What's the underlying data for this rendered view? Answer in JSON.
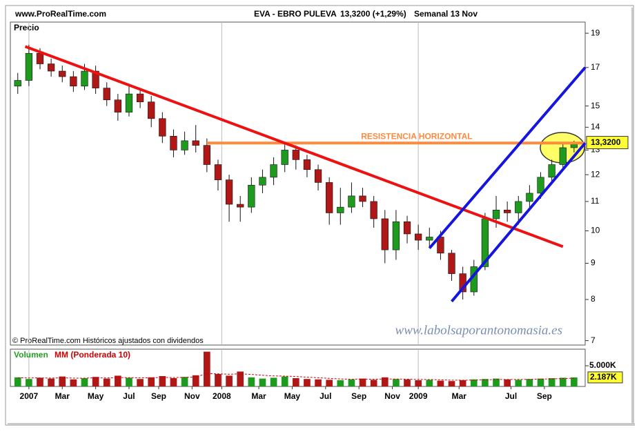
{
  "chart_data": {
    "type": "candlestick",
    "source": "www.ProRealTime.com",
    "title": "EVA - EBRO PULEVA",
    "quote": "13,3200 (+1,29%)",
    "period": "Semanal 13 Nov",
    "y_label": "Precio",
    "footnote": "© ProRealTime.com Históricos ajustados con dividendos",
    "watermark": "www.labolsaporantonomasia.es",
    "log_scale": true,
    "up_color": "#1e9b1e",
    "down_color": "#b01818",
    "x": [
      0,
      3,
      6,
      9,
      12,
      15,
      18,
      21,
      24,
      27,
      30,
      33,
      36,
      39,
      42,
      45,
      48,
      51,
      54,
      57,
      60,
      63,
      66,
      69,
      72,
      75,
      78,
      81,
      84,
      87,
      90,
      93,
      96,
      99,
      102,
      105,
      108,
      111,
      114,
      117,
      120,
      123,
      126,
      129,
      132,
      135,
      138,
      141,
      144,
      147,
      150
    ],
    "open": [
      16.0,
      16.3,
      17.8,
      17.2,
      16.8,
      16.5,
      16.0,
      16.8,
      15.9,
      15.3,
      14.7,
      15.6,
      15.2,
      14.4,
      13.6,
      13.0,
      13.4,
      13.2,
      12.4,
      11.8,
      10.9,
      10.8,
      11.6,
      11.9,
      12.4,
      13.0,
      12.6,
      12.2,
      11.7,
      10.6,
      10.8,
      11.2,
      11.0,
      10.4,
      9.4,
      10.3,
      9.9,
      9.7,
      9.8,
      9.3,
      8.7,
      8.2,
      8.9,
      10.4,
      10.7,
      10.6,
      11.0,
      11.3,
      11.9,
      12.4,
      13.1
    ],
    "high": [
      16.7,
      18.3,
      18.1,
      17.5,
      17.1,
      16.8,
      17.2,
      17.1,
      16.2,
      15.6,
      16.0,
      15.9,
      15.5,
      14.7,
      13.9,
      13.8,
      14.1,
      13.5,
      12.6,
      12.0,
      11.2,
      11.9,
      12.2,
      12.7,
      13.3,
      13.2,
      12.8,
      12.4,
      11.9,
      11.5,
      11.7,
      11.5,
      11.2,
      10.7,
      10.7,
      10.5,
      10.2,
      10.1,
      10.0,
      9.4,
      8.9,
      9.1,
      10.6,
      11.2,
      11.0,
      11.2,
      11.6,
      12.1,
      12.6,
      13.3,
      13.4
    ],
    "low": [
      15.6,
      16.0,
      16.9,
      16.5,
      16.2,
      15.7,
      15.8,
      15.6,
      15.0,
      14.3,
      14.5,
      14.9,
      14.0,
      13.3,
      12.7,
      12.8,
      12.9,
      12.1,
      11.4,
      10.3,
      10.3,
      10.6,
      11.3,
      11.6,
      12.1,
      12.2,
      11.9,
      11.4,
      10.2,
      10.2,
      10.6,
      10.8,
      10.1,
      9.0,
      9.1,
      9.6,
      9.4,
      9.5,
      9.1,
      8.5,
      8.0,
      8.1,
      8.8,
      10.1,
      10.3,
      10.2,
      10.8,
      11.1,
      11.7,
      12.2,
      12.9
    ],
    "close": [
      16.3,
      17.8,
      17.2,
      16.8,
      16.5,
      16.0,
      16.8,
      15.9,
      15.3,
      14.7,
      15.6,
      15.2,
      14.4,
      13.6,
      13.0,
      13.4,
      13.2,
      12.4,
      11.8,
      10.9,
      10.8,
      11.6,
      11.9,
      12.4,
      13.0,
      12.6,
      12.2,
      11.7,
      10.6,
      10.8,
      11.2,
      11.0,
      10.4,
      9.4,
      10.3,
      9.9,
      9.7,
      9.8,
      9.3,
      8.7,
      8.2,
      8.9,
      10.4,
      10.7,
      10.6,
      11.0,
      11.3,
      11.9,
      12.4,
      13.1,
      13.32
    ],
    "xlim": [
      -2,
      153
    ],
    "xticks": [
      {
        "value": 3,
        "label": "2007"
      },
      {
        "value": 12,
        "label": "Mar"
      },
      {
        "value": 21,
        "label": "May"
      },
      {
        "value": 30,
        "label": "Jul"
      },
      {
        "value": 38,
        "label": "Sep"
      },
      {
        "value": 47,
        "label": "Nov"
      },
      {
        "value": 55,
        "label": "2008"
      },
      {
        "value": 65,
        "label": "Mar"
      },
      {
        "value": 74,
        "label": "May"
      },
      {
        "value": 83,
        "label": "Jul"
      },
      {
        "value": 92,
        "label": "Sep"
      },
      {
        "value": 101,
        "label": "Nov"
      },
      {
        "value": 108,
        "label": "2009"
      },
      {
        "value": 119,
        "label": "Mar"
      },
      {
        "value": 133,
        "label": "Jul"
      },
      {
        "value": 142,
        "label": "Sep"
      }
    ],
    "ylim": [
      6.9,
      19.7
    ],
    "yticks": [
      7,
      8,
      9,
      10,
      11,
      12,
      13,
      14,
      15,
      17,
      19
    ],
    "last_price": {
      "value": 13.32,
      "label": "13,3200"
    },
    "annotations": [
      {
        "text": "RESISTENCIA HORIZONTAL",
        "color": "#ff8a3d",
        "x": [
          51,
          153
        ],
        "values": [
          13.3,
          13.3
        ]
      },
      {
        "color": "#ee1111",
        "x": [
          2,
          147
        ],
        "values": [
          18.2,
          9.5
        ]
      },
      {
        "color": "#1515dd",
        "x": [
          111,
          153
        ],
        "values": [
          9.45,
          17.0
        ]
      },
      {
        "color": "#1515dd",
        "x": [
          117,
          153
        ],
        "values": [
          7.95,
          13.3
        ]
      }
    ],
    "volume": {
      "series": [
        {
          "name": "Volumen",
          "color": "#22a022",
          "values": [
            2200,
            1800,
            2100,
            1900,
            2400,
            1700,
            2000,
            2300,
            1900,
            2600,
            2100,
            1800,
            2200,
            2500,
            2000,
            2300,
            2700,
            8400,
            3000,
            2600,
            3600,
            2200,
            1900,
            2100,
            2400,
            2000,
            1800,
            1700,
            1600,
            1500,
            1700,
            1900,
            1600,
            2200,
            1800,
            1700,
            1500,
            1600,
            1400,
            1300,
            1500,
            1700,
            1800,
            1900,
            1700,
            1600,
            1800,
            1900,
            2000,
            2100,
            2187
          ]
        },
        {
          "name": "MM (Ponderada 10)",
          "color": "#d00000",
          "values": [
            2100,
            2050,
            2060,
            2010,
            2100,
            2000,
            2010,
            2080,
            2050,
            2150,
            2130,
            2070,
            2100,
            2180,
            2150,
            2190,
            2280,
            3100,
            3050,
            2950,
            3050,
            2900,
            2700,
            2550,
            2500,
            2400,
            2250,
            2100,
            1950,
            1800,
            1750,
            1780,
            1730,
            1800,
            1790,
            1760,
            1700,
            1670,
            1600,
            1520,
            1510,
            1550,
            1600,
            1680,
            1690,
            1680,
            1710,
            1760,
            1820,
            1900,
            2000
          ]
        }
      ],
      "ylim": [
        0,
        9000
      ],
      "yticks": [
        {
          "value": 5000,
          "label": "5.000K"
        }
      ],
      "last": {
        "value": 2187,
        "label": "2.187K"
      }
    }
  }
}
